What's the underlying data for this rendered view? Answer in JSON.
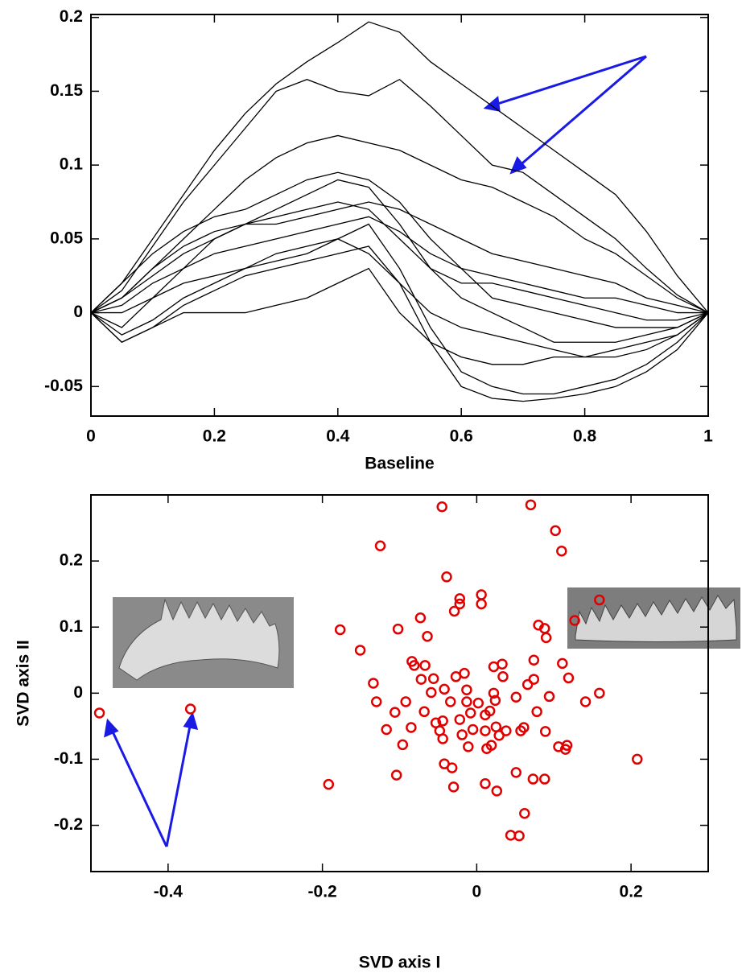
{
  "chart_data": [
    {
      "type": "line",
      "x_label": "Baseline",
      "x": [
        0,
        0.05,
        0.1,
        0.15,
        0.2,
        0.25,
        0.3,
        0.35,
        0.4,
        0.45,
        0.5,
        0.55,
        0.6,
        0.65,
        0.7,
        0.75,
        0.8,
        0.85,
        0.9,
        0.95,
        1
      ],
      "color": "#000000",
      "xlim": [
        0,
        1
      ],
      "xticks": [
        0,
        0.2,
        0.4,
        0.6,
        0.8,
        1
      ],
      "ylim": [
        -0.07,
        0.202
      ],
      "yticks": [
        -0.05,
        0,
        0.05,
        0.1,
        0.15,
        0.2
      ],
      "series": [
        {
          "values": [
            0,
            0.02,
            0.05,
            0.08,
            0.11,
            0.135,
            0.155,
            0.17,
            0.183,
            0.197,
            0.19,
            0.17,
            0.155,
            0.14,
            0.125,
            0.11,
            0.095,
            0.08,
            0.055,
            0.025,
            0
          ]
        },
        {
          "values": [
            0,
            0.015,
            0.045,
            0.075,
            0.1,
            0.125,
            0.15,
            0.158,
            0.15,
            0.147,
            0.158,
            0.14,
            0.12,
            0.1,
            0.095,
            0.08,
            0.065,
            0.05,
            0.03,
            0.012,
            0
          ]
        },
        {
          "values": [
            0,
            0.01,
            0.03,
            0.05,
            0.07,
            0.09,
            0.105,
            0.115,
            0.12,
            0.115,
            0.11,
            0.1,
            0.09,
            0.085,
            0.075,
            0.065,
            0.05,
            0.04,
            0.025,
            0.01,
            0
          ]
        },
        {
          "values": [
            0,
            -0.01,
            0.01,
            0.03,
            0.05,
            0.06,
            0.07,
            0.08,
            0.09,
            0.085,
            0.06,
            0.03,
            0.01,
            0,
            -0.01,
            -0.02,
            -0.02,
            -0.02,
            -0.015,
            -0.01,
            0
          ]
        },
        {
          "values": [
            0,
            0.01,
            0.025,
            0.04,
            0.05,
            0.06,
            0.065,
            0.07,
            0.075,
            0.07,
            0.05,
            0.03,
            0.02,
            0.02,
            0.015,
            0.01,
            0.005,
            0,
            -0.005,
            -0.005,
            0
          ]
        },
        {
          "values": [
            0,
            -0.015,
            -0.005,
            0.01,
            0.02,
            0.03,
            0.035,
            0.04,
            0.05,
            0.06,
            0.03,
            -0.01,
            -0.04,
            -0.05,
            -0.055,
            -0.055,
            -0.05,
            -0.045,
            -0.035,
            -0.02,
            0
          ]
        },
        {
          "values": [
            0,
            -0.02,
            -0.01,
            0.005,
            0.015,
            0.025,
            0.03,
            0.035,
            0.04,
            0.045,
            0.02,
            -0.02,
            -0.05,
            -0.058,
            -0.06,
            -0.058,
            -0.055,
            -0.05,
            -0.04,
            -0.025,
            0
          ]
        },
        {
          "values": [
            0,
            0.005,
            0.02,
            0.03,
            0.04,
            0.045,
            0.05,
            0.055,
            0.06,
            0.065,
            0.055,
            0.04,
            0.03,
            0.025,
            0.02,
            0.015,
            0.01,
            0.01,
            0.005,
            0,
            0
          ]
        },
        {
          "values": [
            0,
            0.02,
            0.04,
            0.055,
            0.065,
            0.07,
            0.08,
            0.09,
            0.095,
            0.09,
            0.075,
            0.05,
            0.03,
            0.01,
            0.005,
            0,
            -0.005,
            -0.01,
            -0.01,
            -0.01,
            0
          ]
        },
        {
          "values": [
            0,
            -0.02,
            -0.01,
            0,
            0,
            0,
            0.005,
            0.01,
            0.02,
            0.03,
            0,
            -0.02,
            -0.03,
            -0.035,
            -0.035,
            -0.03,
            -0.03,
            -0.025,
            -0.02,
            -0.015,
            0
          ]
        },
        {
          "values": [
            0,
            0.01,
            0.03,
            0.045,
            0.055,
            0.06,
            0.06,
            0.065,
            0.07,
            0.075,
            0.07,
            0.06,
            0.05,
            0.04,
            0.035,
            0.03,
            0.025,
            0.02,
            0.01,
            0.005,
            0
          ]
        },
        {
          "values": [
            0,
            0,
            0.01,
            0.02,
            0.025,
            0.03,
            0.04,
            0.045,
            0.05,
            0.04,
            0.02,
            0,
            -0.01,
            -0.015,
            -0.02,
            -0.025,
            -0.03,
            -0.03,
            -0.025,
            -0.015,
            0
          ]
        }
      ]
    },
    {
      "type": "scatter",
      "x_label": "SVD axis I",
      "y_label": "SVD axis II",
      "color": "#e00000",
      "xlim": [
        -0.5,
        0.3
      ],
      "xticks": [
        -0.4,
        -0.2,
        0,
        0.2
      ],
      "ylim": [
        -0.27,
        0.3
      ],
      "yticks": [
        -0.2,
        -0.1,
        0,
        0.1,
        0.2
      ],
      "x": [
        -0.489,
        -0.371,
        -0.192,
        -0.177,
        -0.151,
        -0.134,
        -0.13,
        -0.125,
        -0.117,
        -0.106,
        -0.102,
        -0.104,
        -0.096,
        -0.092,
        -0.085,
        -0.084,
        -0.081,
        -0.073,
        -0.072,
        -0.067,
        -0.068,
        -0.064,
        -0.059,
        -0.056,
        -0.053,
        -0.048,
        -0.045,
        -0.044,
        -0.044,
        -0.042,
        -0.042,
        -0.039,
        -0.034,
        -0.032,
        -0.03,
        -0.029,
        -0.027,
        -0.022,
        -0.022,
        -0.022,
        -0.019,
        -0.016,
        -0.013,
        -0.013,
        -0.011,
        -0.008,
        -0.005,
        0.002,
        0.006,
        0.006,
        0.011,
        0.011,
        0.013,
        0.011,
        0.017,
        0.019,
        0.022,
        0.022,
        0.024,
        0.025,
        0.026,
        0.029,
        0.033,
        0.034,
        0.038,
        0.044,
        0.051,
        0.051,
        0.055,
        0.057,
        0.061,
        0.062,
        0.066,
        0.07,
        0.074,
        0.074,
        0.073,
        0.078,
        0.08,
        0.088,
        0.088,
        0.089,
        0.09,
        0.094,
        0.102,
        0.106,
        0.11,
        0.111,
        0.115,
        0.117,
        0.119,
        0.127,
        0.141,
        0.159,
        0.159,
        0.208
      ],
      "values": [
        -0.03,
        -0.024,
        -0.138,
        0.096,
        0.065,
        0.015,
        -0.013,
        0.223,
        -0.055,
        -0.029,
        0.097,
        -0.124,
        -0.078,
        -0.013,
        -0.052,
        0.048,
        0.042,
        0.114,
        0.021,
        0.042,
        -0.028,
        0.086,
        0.001,
        0.022,
        -0.045,
        -0.057,
        0.282,
        -0.042,
        -0.069,
        0.006,
        -0.107,
        0.176,
        -0.013,
        -0.113,
        -0.142,
        0.124,
        0.025,
        0.143,
        0.135,
        -0.04,
        -0.063,
        0.03,
        0.005,
        -0.013,
        -0.081,
        -0.03,
        -0.055,
        -0.015,
        0.135,
        0.149,
        -0.033,
        -0.057,
        -0.084,
        -0.137,
        -0.027,
        -0.079,
        0,
        0.04,
        -0.011,
        -0.051,
        -0.148,
        -0.064,
        0.044,
        0.025,
        -0.057,
        -0.215,
        -0.006,
        -0.12,
        -0.216,
        -0.057,
        -0.052,
        -0.182,
        0.013,
        0.285,
        0.05,
        0.021,
        -0.13,
        -0.028,
        0.103,
        0.098,
        -0.13,
        -0.058,
        0.084,
        -0.005,
        0.246,
        -0.081,
        0.215,
        0.045,
        -0.085,
        -0.079,
        0.023,
        0.11,
        -0.013,
        0.141,
        0,
        -0.1
      ]
    }
  ]
}
